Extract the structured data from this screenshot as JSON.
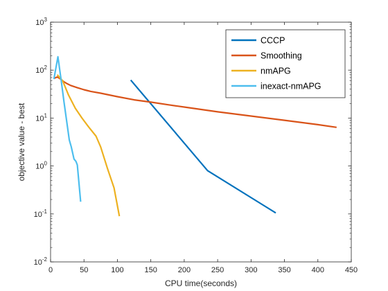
{
  "chart_data": {
    "type": "line",
    "title": "",
    "xlabel": "CPU time(seconds)",
    "ylabel": "objective value - best",
    "xlim": [
      0,
      450
    ],
    "ylim": [
      0.01,
      1000
    ],
    "yscale": "log",
    "grid": false,
    "legend_position": "top-right",
    "x_ticks": [
      0,
      50,
      100,
      150,
      200,
      250,
      300,
      350,
      400,
      450
    ],
    "y_ticks": [
      {
        "value": 0.01,
        "base": "10",
        "exp": "-2"
      },
      {
        "value": 0.1,
        "base": "10",
        "exp": "-1"
      },
      {
        "value": 1,
        "base": "10",
        "exp": "0"
      },
      {
        "value": 10,
        "base": "10",
        "exp": "1"
      },
      {
        "value": 100,
        "base": "10",
        "exp": "2"
      },
      {
        "value": 1000,
        "base": "10",
        "exp": "3"
      }
    ],
    "series": [
      {
        "name": "CCCP",
        "color": "#0072BD",
        "points": [
          [
            120,
            62
          ],
          [
            235,
            0.8
          ],
          [
            337,
            0.105
          ]
        ]
      },
      {
        "name": "Smoothing",
        "color": "#D95319",
        "points": [
          [
            5,
            67
          ],
          [
            10,
            72
          ],
          [
            15,
            65
          ],
          [
            20,
            57
          ],
          [
            25,
            52
          ],
          [
            30,
            48
          ],
          [
            40,
            43
          ],
          [
            50,
            39
          ],
          [
            60,
            36
          ],
          [
            75,
            33
          ],
          [
            100,
            28
          ],
          [
            125,
            24
          ],
          [
            150,
            21.5
          ],
          [
            175,
            19
          ],
          [
            200,
            17
          ],
          [
            250,
            13.5
          ],
          [
            300,
            11
          ],
          [
            350,
            9
          ],
          [
            400,
            7.3
          ],
          [
            428,
            6.4
          ]
        ]
      },
      {
        "name": "nmAPG",
        "color": "#EDB120",
        "points": [
          [
            10,
            80
          ],
          [
            18,
            60
          ],
          [
            27,
            30
          ],
          [
            37,
            16
          ],
          [
            47,
            10
          ],
          [
            57,
            6.5
          ],
          [
            68,
            4.2
          ],
          [
            75,
            2.5
          ],
          [
            85,
            0.9
          ],
          [
            95,
            0.35
          ],
          [
            103,
            0.09
          ]
        ]
      },
      {
        "name": "inexact-nmAPG",
        "color": "#4DBEEE",
        "points": [
          [
            5,
            65
          ],
          [
            11,
            190
          ],
          [
            16,
            60
          ],
          [
            20,
            22
          ],
          [
            25,
            7
          ],
          [
            28,
            3.5
          ],
          [
            31,
            2.5
          ],
          [
            35,
            1.4
          ],
          [
            38,
            1.25
          ],
          [
            40,
            1.05
          ],
          [
            45,
            0.18
          ]
        ]
      }
    ]
  }
}
